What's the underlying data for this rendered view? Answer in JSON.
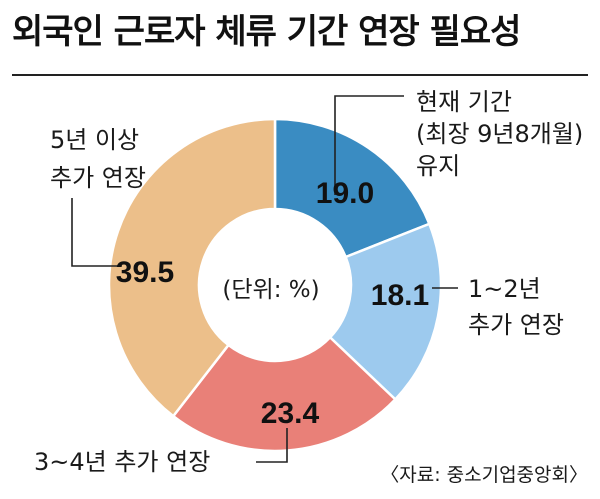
{
  "title": "외국인 근로자 체류 기간 연장 필요성",
  "unit_label": "(단위: %)",
  "source": "〈자료: 중소기업중앙회〉",
  "chart_data": {
    "type": "pie",
    "title": "외국인 근로자 체류 기간 연장 필요성",
    "unit": "(단위: %)",
    "start_angle_deg": 0,
    "direction": "clockwise",
    "slices": [
      {
        "label_lines": [
          "현재 기간",
          "(최장 9년8개월)",
          "유지"
        ],
        "value": 19.0,
        "display": "19.0",
        "color": "#3a8cc2"
      },
      {
        "label_lines": [
          "1~2년",
          "추가 연장"
        ],
        "value": 18.1,
        "display": "18.1",
        "color": "#9dcaee"
      },
      {
        "label_lines": [
          "3~4년 추가 연장"
        ],
        "value": 23.4,
        "display": "23.4",
        "color": "#e98078"
      },
      {
        "label_lines": [
          "5년 이상",
          "추가 연장"
        ],
        "value": 39.5,
        "display": "39.5",
        "color": "#ecbf8a"
      }
    ]
  }
}
